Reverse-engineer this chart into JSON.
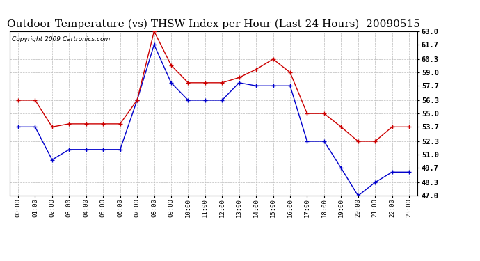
{
  "title": "Outdoor Temperature (vs) THSW Index per Hour (Last 24 Hours)  20090515",
  "copyright": "Copyright 2009 Cartronics.com",
  "hours": [
    "00:00",
    "01:00",
    "02:00",
    "03:00",
    "04:00",
    "05:00",
    "06:00",
    "07:00",
    "08:00",
    "09:00",
    "10:00",
    "11:00",
    "12:00",
    "13:00",
    "14:00",
    "15:00",
    "16:00",
    "17:00",
    "18:00",
    "19:00",
    "20:00",
    "21:00",
    "22:00",
    "23:00"
  ],
  "temp_blue": [
    53.7,
    53.7,
    50.5,
    51.5,
    51.5,
    51.5,
    51.5,
    56.3,
    61.7,
    58.0,
    56.3,
    56.3,
    56.3,
    58.0,
    57.7,
    57.7,
    57.7,
    52.3,
    52.3,
    49.7,
    47.0,
    48.3,
    49.3,
    49.3
  ],
  "thsw_red": [
    56.3,
    56.3,
    53.7,
    54.0,
    54.0,
    54.0,
    54.0,
    56.3,
    63.0,
    59.7,
    58.0,
    58.0,
    58.0,
    58.5,
    59.3,
    60.3,
    59.0,
    55.0,
    55.0,
    53.7,
    52.3,
    52.3,
    53.7,
    53.7
  ],
  "ylim_min": 47.0,
  "ylim_max": 63.0,
  "yticks": [
    47.0,
    48.3,
    49.7,
    51.0,
    52.3,
    53.7,
    55.0,
    56.3,
    57.7,
    59.0,
    60.3,
    61.7,
    63.0
  ],
  "blue_color": "#0000cc",
  "red_color": "#cc0000",
  "bg_color": "#ffffff",
  "grid_color": "#bbbbbb",
  "title_fontsize": 11,
  "copyright_fontsize": 6.5
}
